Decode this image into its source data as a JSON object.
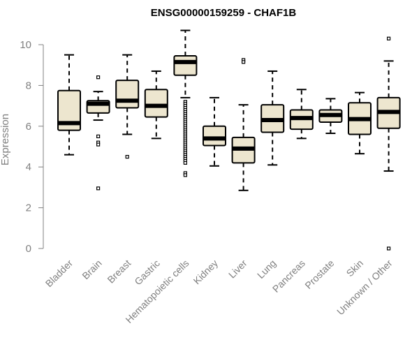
{
  "chart_data": {
    "type": "boxplot",
    "title": "ENSG00000159259 - CHAF1B",
    "xlabel": "",
    "ylabel": "Expression",
    "ylim": [
      0,
      10.8
    ],
    "yticks": [
      0,
      2,
      4,
      6,
      8,
      10
    ],
    "yticks_labels": [
      "0",
      "2",
      "4",
      "6",
      "8",
      "10"
    ],
    "box_fill": "#ede6cf",
    "line_color": "#000000",
    "axis_color": "#808080",
    "categories": [
      "Bladder",
      "Brain",
      "Breast",
      "Gastric",
      "Hematopoietic cells",
      "Kidney",
      "Liver",
      "Lung",
      "Pancreas",
      "Prostate",
      "Skin",
      "Unknown / Other"
    ],
    "series": [
      {
        "name": "Bladder",
        "whisker_low": 4.6,
        "q1": 5.8,
        "median": 6.15,
        "q3": 7.75,
        "whisker_high": 9.5,
        "outliers": []
      },
      {
        "name": "Brain",
        "whisker_low": 6.3,
        "q1": 6.65,
        "median": 7.1,
        "q3": 7.25,
        "whisker_high": 7.7,
        "outliers": [
          8.4,
          5.5,
          5.2,
          5.1,
          2.95
        ]
      },
      {
        "name": "Breast",
        "whisker_low": 5.6,
        "q1": 6.9,
        "median": 7.25,
        "q3": 8.25,
        "whisker_high": 9.5,
        "outliers": [
          4.5
        ]
      },
      {
        "name": "Gastric",
        "whisker_low": 5.4,
        "q1": 6.45,
        "median": 7.0,
        "q3": 7.8,
        "whisker_high": 8.7,
        "outliers": []
      },
      {
        "name": "Hematopoietic cells",
        "whisker_low": 7.4,
        "q1": 8.5,
        "median": 9.15,
        "q3": 9.45,
        "whisker_high": 10.7,
        "outliers": [
          7.2,
          7.1,
          7.0,
          6.9,
          6.8,
          6.7,
          6.6,
          6.5,
          6.4,
          6.3,
          6.2,
          6.1,
          6.0,
          5.9,
          5.8,
          5.7,
          5.6,
          5.5,
          5.4,
          5.3,
          5.2,
          5.1,
          5.0,
          4.9,
          4.8,
          4.7,
          4.6,
          4.5,
          4.4,
          4.3,
          4.2,
          3.7,
          3.6
        ]
      },
      {
        "name": "Kidney",
        "whisker_low": 4.05,
        "q1": 5.05,
        "median": 5.4,
        "q3": 6.0,
        "whisker_high": 7.4,
        "outliers": []
      },
      {
        "name": "Liver",
        "whisker_low": 2.85,
        "q1": 4.2,
        "median": 4.9,
        "q3": 5.45,
        "whisker_high": 7.05,
        "outliers": [
          9.25,
          9.15
        ]
      },
      {
        "name": "Lung",
        "whisker_low": 4.1,
        "q1": 5.7,
        "median": 6.3,
        "q3": 7.05,
        "whisker_high": 8.7,
        "outliers": []
      },
      {
        "name": "Pancreas",
        "whisker_low": 5.4,
        "q1": 5.85,
        "median": 6.4,
        "q3": 6.8,
        "whisker_high": 7.8,
        "outliers": []
      },
      {
        "name": "Prostate",
        "whisker_low": 5.65,
        "q1": 6.2,
        "median": 6.55,
        "q3": 6.8,
        "whisker_high": 7.35,
        "outliers": []
      },
      {
        "name": "Skin",
        "whisker_low": 4.65,
        "q1": 5.6,
        "median": 6.35,
        "q3": 7.15,
        "whisker_high": 7.65,
        "outliers": []
      },
      {
        "name": "Unknown / Other",
        "whisker_low": 3.8,
        "q1": 5.9,
        "median": 6.7,
        "q3": 7.4,
        "whisker_high": 9.2,
        "outliers": [
          10.3,
          0.0
        ]
      }
    ]
  }
}
